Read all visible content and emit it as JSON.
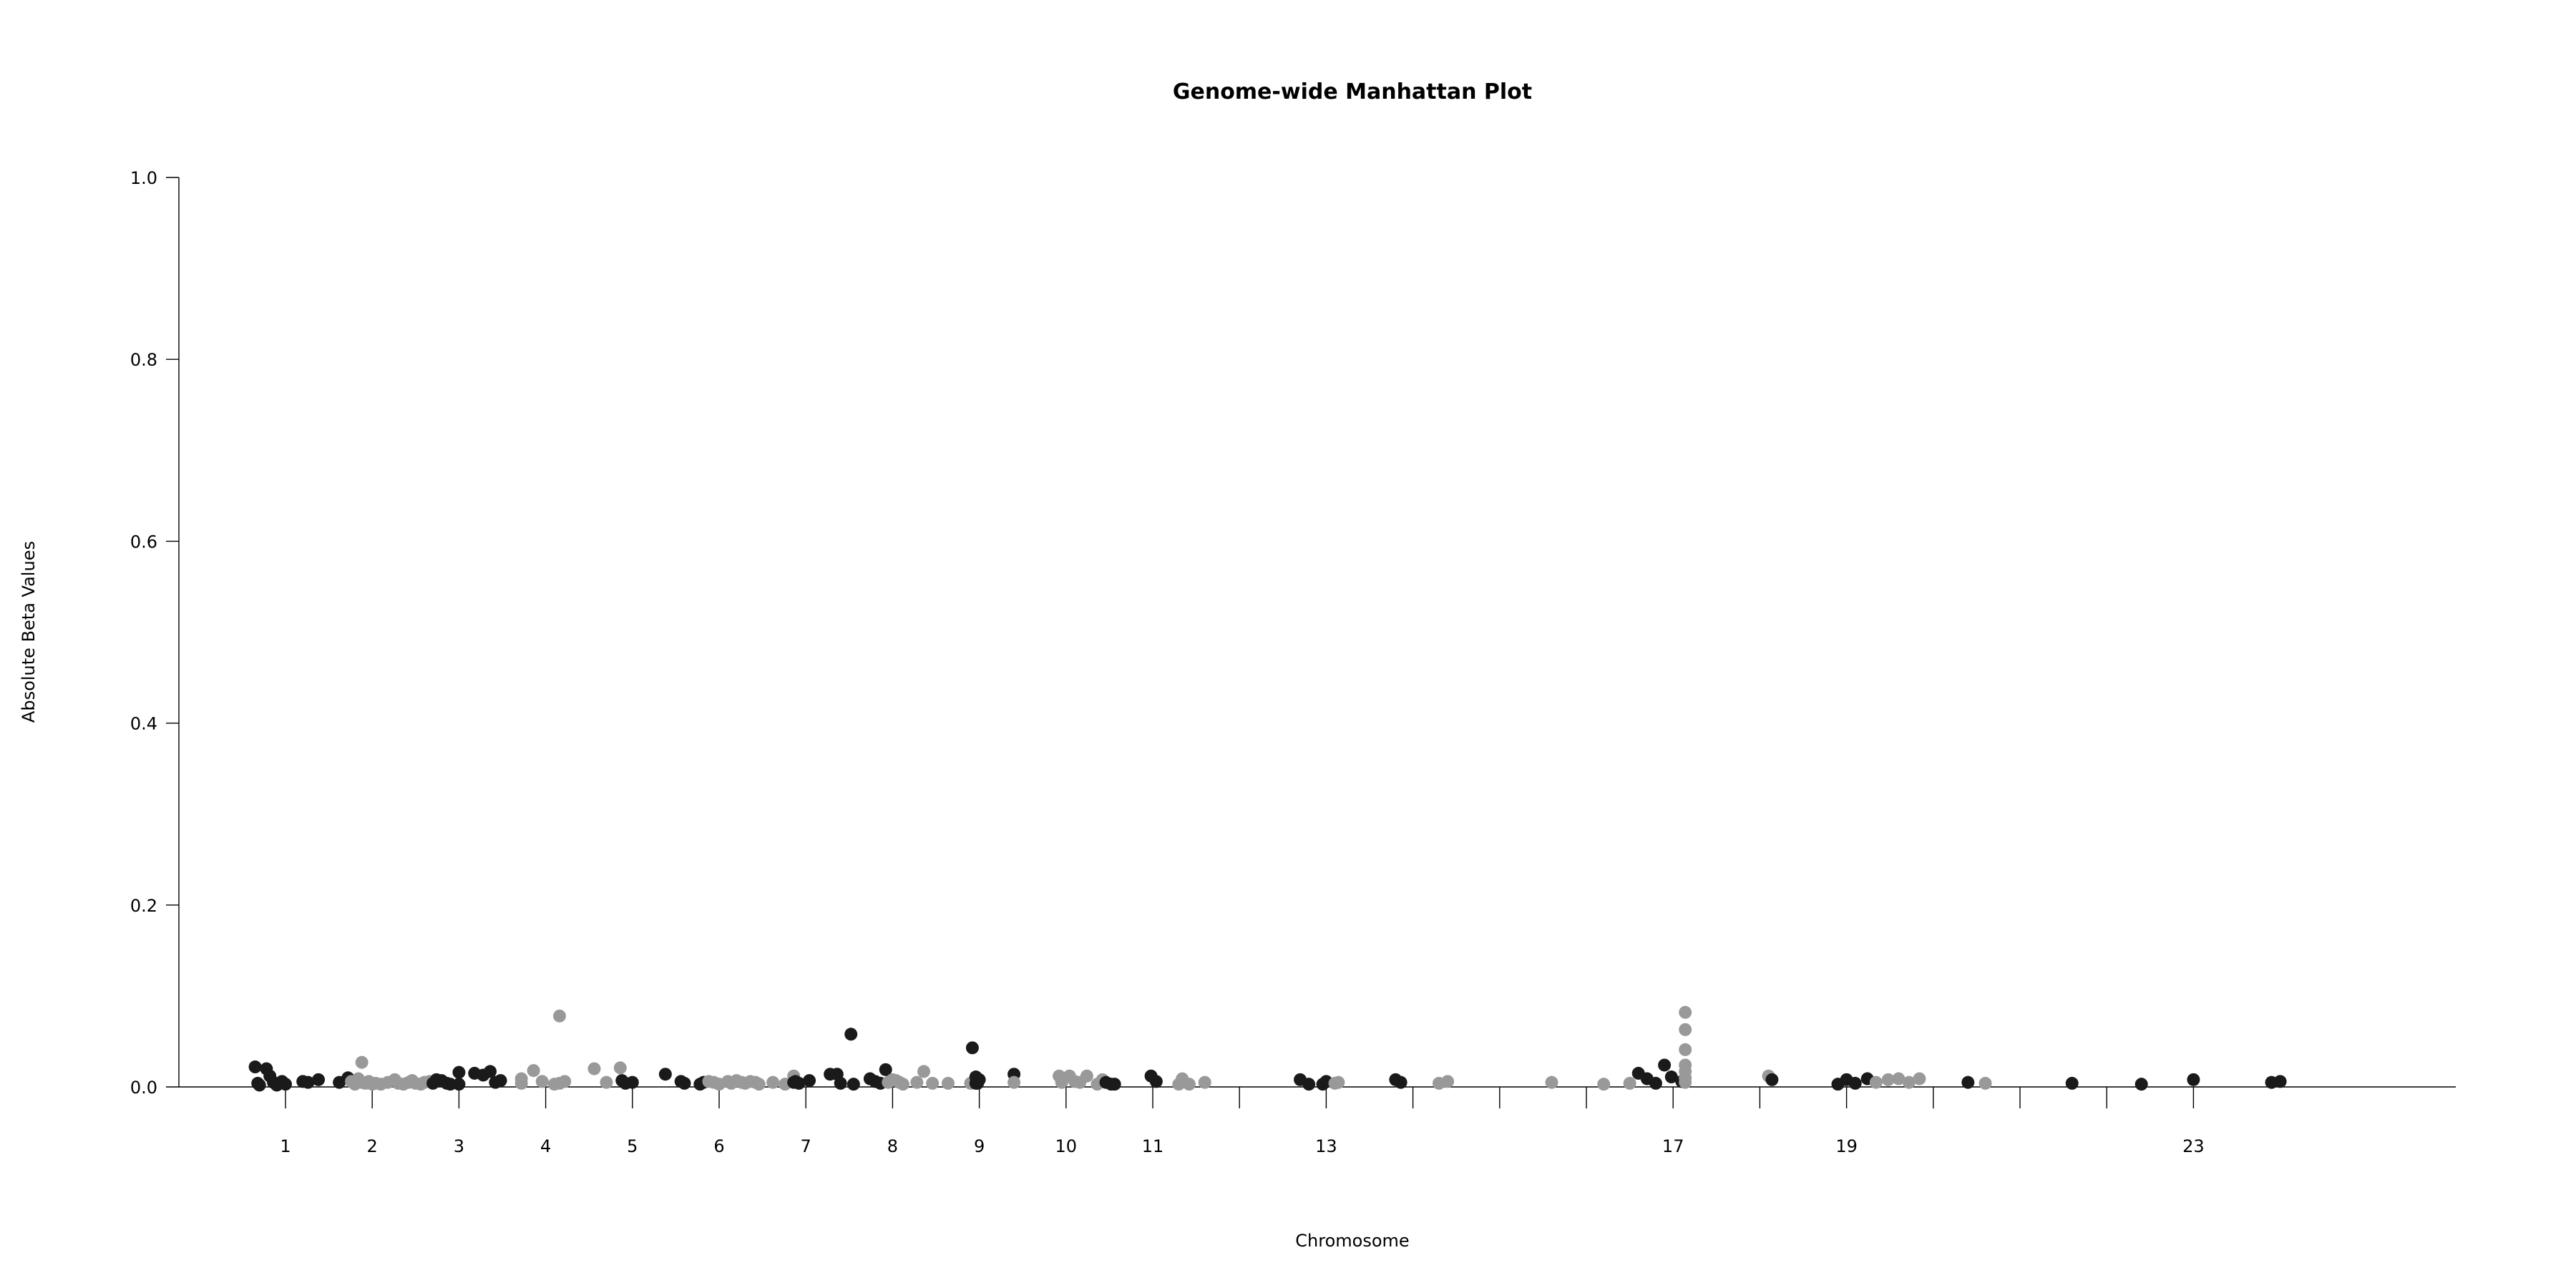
{
  "chart_data": {
    "type": "scatter",
    "title": "Genome-wide Manhattan Plot",
    "xlabel": "Chromosome",
    "ylabel": "Absolute Beta Values",
    "ylim": [
      0,
      1.0
    ],
    "yticks": [
      "0.0",
      "0.2",
      "0.4",
      "0.6",
      "0.8",
      "1.0"
    ],
    "grid": false,
    "legend": "none",
    "colors": {
      "odd": "#1a1a1a",
      "even": "#999999"
    },
    "chromosomes": [
      {
        "label": "1",
        "pos": 1
      },
      {
        "label": "2",
        "pos": 2
      },
      {
        "label": "3",
        "pos": 3
      },
      {
        "label": "4",
        "pos": 4
      },
      {
        "label": "5",
        "pos": 5
      },
      {
        "label": "6",
        "pos": 6
      },
      {
        "label": "7",
        "pos": 7
      },
      {
        "label": "8",
        "pos": 8
      },
      {
        "label": "9",
        "pos": 9
      },
      {
        "label": "10",
        "pos": 10
      },
      {
        "label": "11",
        "pos": 11
      },
      {
        "label": "",
        "pos": 12
      },
      {
        "label": "13",
        "pos": 13
      },
      {
        "label": "",
        "pos": 14
      },
      {
        "label": "",
        "pos": 15
      },
      {
        "label": "",
        "pos": 16
      },
      {
        "label": "17",
        "pos": 17
      },
      {
        "label": "",
        "pos": 18
      },
      {
        "label": "19",
        "pos": 19
      },
      {
        "label": "",
        "pos": 20
      },
      {
        "label": "",
        "pos": 21
      },
      {
        "label": "",
        "pos": 22
      },
      {
        "label": "23",
        "pos": 23
      }
    ],
    "points": [
      {
        "x": 0.65,
        "y": 0.022,
        "c": "odd"
      },
      {
        "x": 0.68,
        "y": 0.004,
        "c": "odd"
      },
      {
        "x": 0.7,
        "y": 0.002,
        "c": "odd"
      },
      {
        "x": 0.78,
        "y": 0.02,
        "c": "odd"
      },
      {
        "x": 0.82,
        "y": 0.012,
        "c": "odd"
      },
      {
        "x": 0.86,
        "y": 0.005,
        "c": "odd"
      },
      {
        "x": 0.9,
        "y": 0.002,
        "c": "odd"
      },
      {
        "x": 0.96,
        "y": 0.006,
        "c": "odd"
      },
      {
        "x": 1.0,
        "y": 0.003,
        "c": "odd"
      },
      {
        "x": 1.2,
        "y": 0.006,
        "c": "odd"
      },
      {
        "x": 1.26,
        "y": 0.005,
        "c": "odd"
      },
      {
        "x": 1.38,
        "y": 0.008,
        "c": "odd"
      },
      {
        "x": 1.62,
        "y": 0.005,
        "c": "odd"
      },
      {
        "x": 1.72,
        "y": 0.01,
        "c": "odd"
      },
      {
        "x": 1.76,
        "y": 0.006,
        "c": "even"
      },
      {
        "x": 1.8,
        "y": 0.003,
        "c": "even"
      },
      {
        "x": 1.84,
        "y": 0.009,
        "c": "even"
      },
      {
        "x": 1.88,
        "y": 0.005,
        "c": "even"
      },
      {
        "x": 1.92,
        "y": 0.004,
        "c": "even"
      },
      {
        "x": 1.96,
        "y": 0.006,
        "c": "even"
      },
      {
        "x": 2.0,
        "y": 0.003,
        "c": "even"
      },
      {
        "x": 1.88,
        "y": 0.027,
        "c": "even"
      },
      {
        "x": 2.04,
        "y": 0.004,
        "c": "even"
      },
      {
        "x": 2.1,
        "y": 0.003,
        "c": "even"
      },
      {
        "x": 2.18,
        "y": 0.005,
        "c": "even"
      },
      {
        "x": 2.26,
        "y": 0.008,
        "c": "even"
      },
      {
        "x": 2.3,
        "y": 0.004,
        "c": "even"
      },
      {
        "x": 2.36,
        "y": 0.003,
        "c": "even"
      },
      {
        "x": 2.42,
        "y": 0.005,
        "c": "even"
      },
      {
        "x": 2.46,
        "y": 0.007,
        "c": "even"
      },
      {
        "x": 2.5,
        "y": 0.004,
        "c": "even"
      },
      {
        "x": 2.56,
        "y": 0.003,
        "c": "even"
      },
      {
        "x": 2.6,
        "y": 0.005,
        "c": "even"
      },
      {
        "x": 2.66,
        "y": 0.006,
        "c": "even"
      },
      {
        "x": 2.7,
        "y": 0.004,
        "c": "odd"
      },
      {
        "x": 2.74,
        "y": 0.008,
        "c": "odd"
      },
      {
        "x": 2.8,
        "y": 0.007,
        "c": "odd"
      },
      {
        "x": 2.86,
        "y": 0.004,
        "c": "odd"
      },
      {
        "x": 2.9,
        "y": 0.003,
        "c": "odd"
      },
      {
        "x": 3.0,
        "y": 0.016,
        "c": "odd"
      },
      {
        "x": 3.0,
        "y": 0.003,
        "c": "odd"
      },
      {
        "x": 3.18,
        "y": 0.015,
        "c": "odd"
      },
      {
        "x": 3.28,
        "y": 0.013,
        "c": "odd"
      },
      {
        "x": 3.36,
        "y": 0.017,
        "c": "odd"
      },
      {
        "x": 3.42,
        "y": 0.005,
        "c": "odd"
      },
      {
        "x": 3.48,
        "y": 0.007,
        "c": "odd"
      },
      {
        "x": 3.72,
        "y": 0.009,
        "c": "even"
      },
      {
        "x": 3.72,
        "y": 0.004,
        "c": "even"
      },
      {
        "x": 3.86,
        "y": 0.018,
        "c": "even"
      },
      {
        "x": 3.96,
        "y": 0.006,
        "c": "even"
      },
      {
        "x": 4.1,
        "y": 0.003,
        "c": "even"
      },
      {
        "x": 4.16,
        "y": 0.004,
        "c": "even"
      },
      {
        "x": 4.22,
        "y": 0.006,
        "c": "even"
      },
      {
        "x": 4.16,
        "y": 0.078,
        "c": "even"
      },
      {
        "x": 4.56,
        "y": 0.02,
        "c": "even"
      },
      {
        "x": 4.7,
        "y": 0.005,
        "c": "even"
      },
      {
        "x": 4.86,
        "y": 0.021,
        "c": "even"
      },
      {
        "x": 4.88,
        "y": 0.007,
        "c": "odd"
      },
      {
        "x": 4.92,
        "y": 0.004,
        "c": "odd"
      },
      {
        "x": 5.0,
        "y": 0.005,
        "c": "odd"
      },
      {
        "x": 5.38,
        "y": 0.014,
        "c": "odd"
      },
      {
        "x": 5.56,
        "y": 0.006,
        "c": "odd"
      },
      {
        "x": 5.6,
        "y": 0.004,
        "c": "odd"
      },
      {
        "x": 5.78,
        "y": 0.003,
        "c": "odd"
      },
      {
        "x": 5.82,
        "y": 0.005,
        "c": "odd"
      },
      {
        "x": 5.88,
        "y": 0.006,
        "c": "even"
      },
      {
        "x": 5.94,
        "y": 0.005,
        "c": "even"
      },
      {
        "x": 6.0,
        "y": 0.003,
        "c": "even"
      },
      {
        "x": 6.1,
        "y": 0.006,
        "c": "even"
      },
      {
        "x": 6.14,
        "y": 0.004,
        "c": "even"
      },
      {
        "x": 6.2,
        "y": 0.007,
        "c": "even"
      },
      {
        "x": 6.26,
        "y": 0.005,
        "c": "even"
      },
      {
        "x": 6.3,
        "y": 0.004,
        "c": "even"
      },
      {
        "x": 6.36,
        "y": 0.006,
        "c": "even"
      },
      {
        "x": 6.42,
        "y": 0.005,
        "c": "even"
      },
      {
        "x": 6.46,
        "y": 0.003,
        "c": "even"
      },
      {
        "x": 6.62,
        "y": 0.005,
        "c": "even"
      },
      {
        "x": 6.76,
        "y": 0.003,
        "c": "even"
      },
      {
        "x": 6.86,
        "y": 0.012,
        "c": "even"
      },
      {
        "x": 6.88,
        "y": 0.006,
        "c": "odd"
      },
      {
        "x": 6.92,
        "y": 0.004,
        "c": "odd"
      },
      {
        "x": 7.04,
        "y": 0.007,
        "c": "odd"
      },
      {
        "x": 6.86,
        "y": 0.005,
        "c": "odd"
      },
      {
        "x": 7.28,
        "y": 0.014,
        "c": "odd"
      },
      {
        "x": 7.36,
        "y": 0.014,
        "c": "odd"
      },
      {
        "x": 7.4,
        "y": 0.004,
        "c": "odd"
      },
      {
        "x": 7.52,
        "y": 0.058,
        "c": "odd"
      },
      {
        "x": 7.55,
        "y": 0.003,
        "c": "odd"
      },
      {
        "x": 7.74,
        "y": 0.009,
        "c": "odd"
      },
      {
        "x": 7.8,
        "y": 0.006,
        "c": "odd"
      },
      {
        "x": 7.86,
        "y": 0.004,
        "c": "odd"
      },
      {
        "x": 7.92,
        "y": 0.019,
        "c": "odd"
      },
      {
        "x": 7.95,
        "y": 0.005,
        "c": "even"
      },
      {
        "x": 8.0,
        "y": 0.008,
        "c": "even"
      },
      {
        "x": 8.04,
        "y": 0.007,
        "c": "even"
      },
      {
        "x": 8.08,
        "y": 0.005,
        "c": "even"
      },
      {
        "x": 8.12,
        "y": 0.003,
        "c": "even"
      },
      {
        "x": 8.28,
        "y": 0.005,
        "c": "even"
      },
      {
        "x": 8.36,
        "y": 0.017,
        "c": "even"
      },
      {
        "x": 8.46,
        "y": 0.004,
        "c": "even"
      },
      {
        "x": 8.64,
        "y": 0.004,
        "c": "even"
      },
      {
        "x": 8.9,
        "y": 0.004,
        "c": "even"
      },
      {
        "x": 8.96,
        "y": 0.011,
        "c": "odd"
      },
      {
        "x": 8.96,
        "y": 0.004,
        "c": "odd"
      },
      {
        "x": 8.92,
        "y": 0.043,
        "c": "odd"
      },
      {
        "x": 9.0,
        "y": 0.008,
        "c": "odd"
      },
      {
        "x": 8.98,
        "y": 0.004,
        "c": "odd"
      },
      {
        "x": 9.4,
        "y": 0.014,
        "c": "odd"
      },
      {
        "x": 9.4,
        "y": 0.005,
        "c": "even"
      },
      {
        "x": 9.92,
        "y": 0.012,
        "c": "even"
      },
      {
        "x": 9.95,
        "y": 0.005,
        "c": "even"
      },
      {
        "x": 10.04,
        "y": 0.012,
        "c": "even"
      },
      {
        "x": 10.1,
        "y": 0.006,
        "c": "even"
      },
      {
        "x": 10.16,
        "y": 0.005,
        "c": "even"
      },
      {
        "x": 10.24,
        "y": 0.012,
        "c": "even"
      },
      {
        "x": 10.36,
        "y": 0.003,
        "c": "even"
      },
      {
        "x": 10.42,
        "y": 0.008,
        "c": "even"
      },
      {
        "x": 10.46,
        "y": 0.005,
        "c": "odd"
      },
      {
        "x": 10.52,
        "y": 0.003,
        "c": "odd"
      },
      {
        "x": 10.56,
        "y": 0.003,
        "c": "odd"
      },
      {
        "x": 10.98,
        "y": 0.012,
        "c": "odd"
      },
      {
        "x": 11.04,
        "y": 0.006,
        "c": "odd"
      },
      {
        "x": 11.3,
        "y": 0.003,
        "c": "even"
      },
      {
        "x": 11.34,
        "y": 0.009,
        "c": "even"
      },
      {
        "x": 11.42,
        "y": 0.003,
        "c": "even"
      },
      {
        "x": 11.6,
        "y": 0.005,
        "c": "even"
      },
      {
        "x": 12.7,
        "y": 0.008,
        "c": "odd"
      },
      {
        "x": 12.8,
        "y": 0.003,
        "c": "odd"
      },
      {
        "x": 12.96,
        "y": 0.003,
        "c": "odd"
      },
      {
        "x": 13.0,
        "y": 0.006,
        "c": "odd"
      },
      {
        "x": 13.1,
        "y": 0.004,
        "c": "even"
      },
      {
        "x": 13.14,
        "y": 0.005,
        "c": "even"
      },
      {
        "x": 13.8,
        "y": 0.008,
        "c": "odd"
      },
      {
        "x": 13.86,
        "y": 0.005,
        "c": "odd"
      },
      {
        "x": 14.3,
        "y": 0.004,
        "c": "even"
      },
      {
        "x": 14.4,
        "y": 0.006,
        "c": "even"
      },
      {
        "x": 15.6,
        "y": 0.005,
        "c": "even"
      },
      {
        "x": 16.2,
        "y": 0.003,
        "c": "even"
      },
      {
        "x": 16.5,
        "y": 0.004,
        "c": "even"
      },
      {
        "x": 16.6,
        "y": 0.015,
        "c": "odd"
      },
      {
        "x": 16.7,
        "y": 0.009,
        "c": "odd"
      },
      {
        "x": 16.8,
        "y": 0.004,
        "c": "odd"
      },
      {
        "x": 16.9,
        "y": 0.024,
        "c": "odd"
      },
      {
        "x": 16.98,
        "y": 0.011,
        "c": "odd"
      },
      {
        "x": 17.1,
        "y": 0.006,
        "c": "odd"
      },
      {
        "x": 17.14,
        "y": 0.082,
        "c": "even"
      },
      {
        "x": 17.14,
        "y": 0.063,
        "c": "even"
      },
      {
        "x": 17.14,
        "y": 0.041,
        "c": "even"
      },
      {
        "x": 17.14,
        "y": 0.024,
        "c": "even"
      },
      {
        "x": 17.14,
        "y": 0.017,
        "c": "even"
      },
      {
        "x": 17.14,
        "y": 0.01,
        "c": "even"
      },
      {
        "x": 17.14,
        "y": 0.005,
        "c": "even"
      },
      {
        "x": 18.1,
        "y": 0.012,
        "c": "even"
      },
      {
        "x": 18.14,
        "y": 0.008,
        "c": "odd"
      },
      {
        "x": 18.9,
        "y": 0.003,
        "c": "odd"
      },
      {
        "x": 19.0,
        "y": 0.008,
        "c": "odd"
      },
      {
        "x": 19.1,
        "y": 0.004,
        "c": "odd"
      },
      {
        "x": 19.24,
        "y": 0.009,
        "c": "odd"
      },
      {
        "x": 19.34,
        "y": 0.005,
        "c": "even"
      },
      {
        "x": 19.48,
        "y": 0.008,
        "c": "even"
      },
      {
        "x": 19.6,
        "y": 0.009,
        "c": "even"
      },
      {
        "x": 19.72,
        "y": 0.005,
        "c": "even"
      },
      {
        "x": 19.84,
        "y": 0.009,
        "c": "even"
      },
      {
        "x": 20.4,
        "y": 0.005,
        "c": "odd"
      },
      {
        "x": 20.6,
        "y": 0.004,
        "c": "even"
      },
      {
        "x": 21.6,
        "y": 0.004,
        "c": "odd"
      },
      {
        "x": 22.4,
        "y": 0.003,
        "c": "odd"
      },
      {
        "x": 23.0,
        "y": 0.008,
        "c": "odd"
      },
      {
        "x": 23.9,
        "y": 0.005,
        "c": "odd"
      },
      {
        "x": 24.0,
        "y": 0.006,
        "c": "odd"
      }
    ]
  }
}
